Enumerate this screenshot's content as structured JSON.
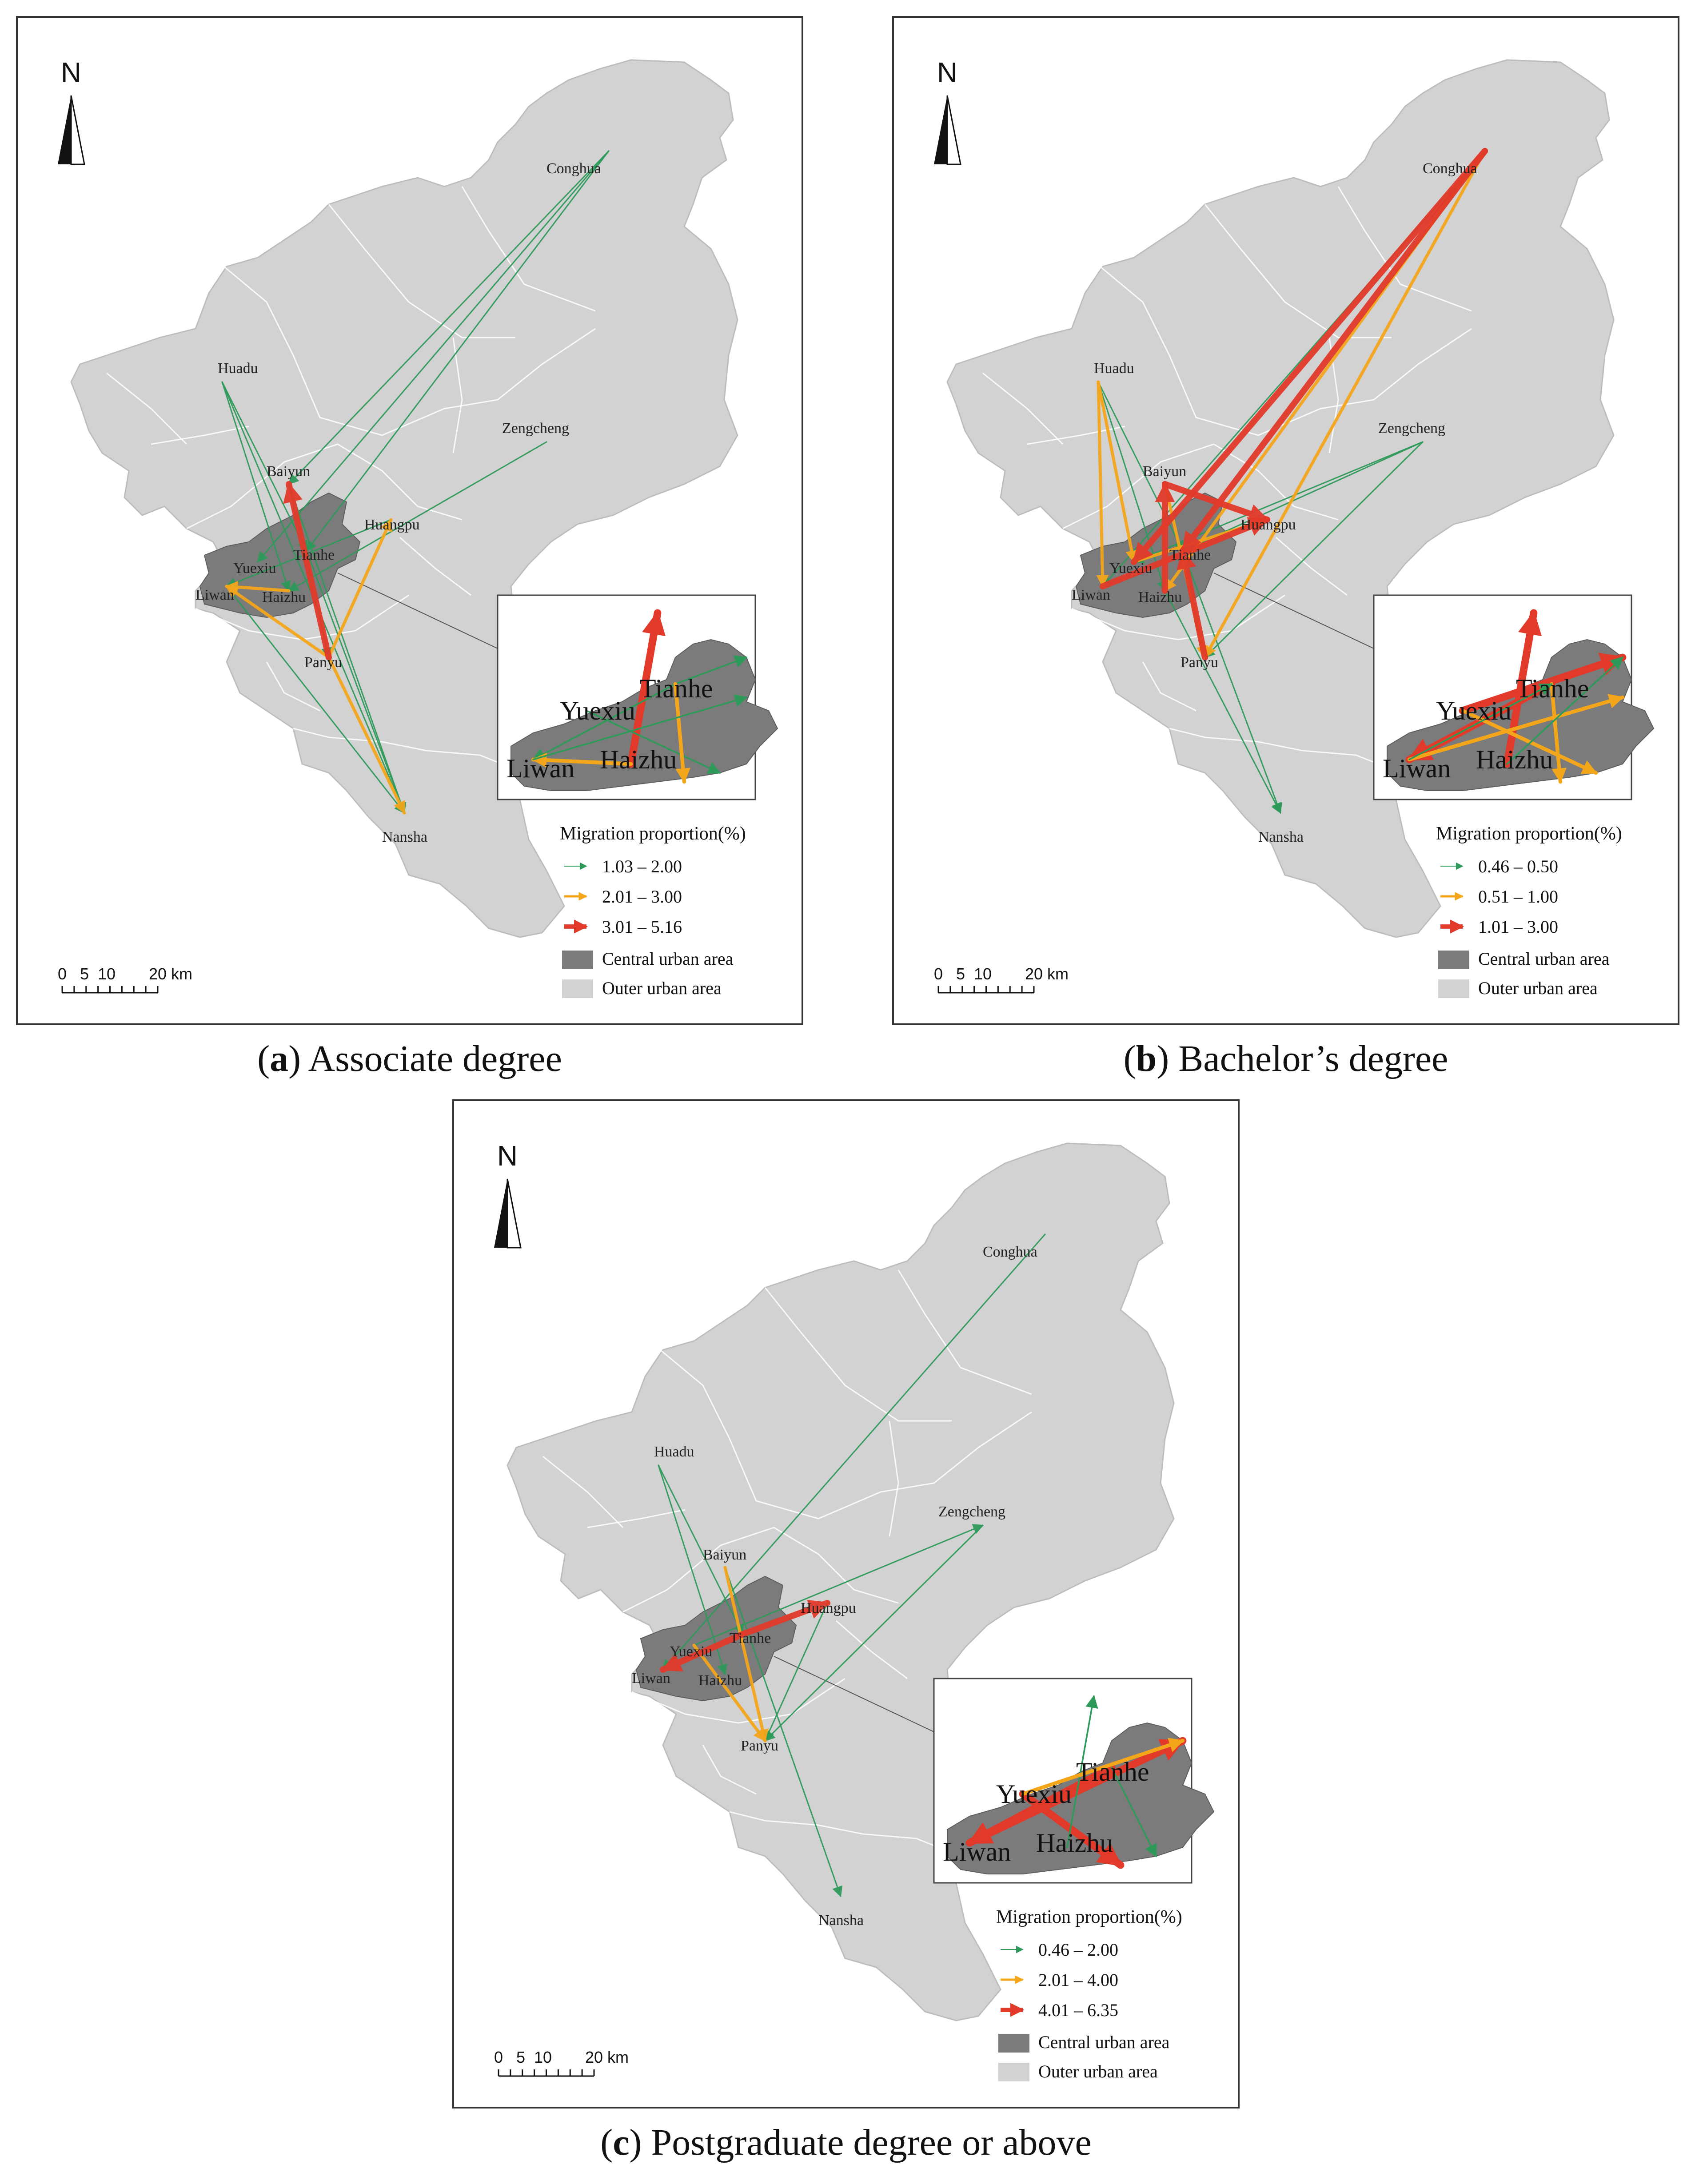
{
  "panels": [
    {
      "id": "a",
      "caption_letter": "a",
      "caption_text": ") Associate degree",
      "caption_prefix": "(",
      "legend": {
        "title": "Migration proportion(%)",
        "classes": [
          {
            "label": "1.03 – 2.00",
            "color": "#2e9a5a"
          },
          {
            "label": "2.01 – 3.00",
            "color": "#f4a61b"
          },
          {
            "label": "3.01 – 5.16",
            "color": "#e23a2a"
          }
        ],
        "central": "Central urban area",
        "outer": "Outer urban area"
      }
    },
    {
      "id": "b",
      "caption_letter": "b",
      "caption_text": ") Bachelor’s degree",
      "caption_prefix": "(",
      "legend": {
        "title": "Migration proportion(%)",
        "classes": [
          {
            "label": "0.46 – 0.50",
            "color": "#2e9a5a"
          },
          {
            "label": "0.51 – 1.00",
            "color": "#f4a61b"
          },
          {
            "label": "1.01 – 3.00",
            "color": "#e23a2a"
          }
        ],
        "central": "Central urban area",
        "outer": "Outer urban area"
      }
    },
    {
      "id": "c",
      "caption_letter": "c",
      "caption_text": ") Postgraduate degree or above",
      "caption_prefix": "(",
      "legend": {
        "title": "Migration proportion(%)",
        "classes": [
          {
            "label": "0.46 – 2.00",
            "color": "#2e9a5a"
          },
          {
            "label": "2.01 – 4.00",
            "color": "#f4a61b"
          },
          {
            "label": "4.01 – 6.35",
            "color": "#e23a2a"
          }
        ],
        "central": "Central urban area",
        "outer": "Outer urban area"
      }
    }
  ],
  "districts": [
    "Conghua",
    "Huadu",
    "Zengcheng",
    "Baiyun",
    "Huangpu",
    "Tianhe",
    "Yuexiu",
    "Liwan",
    "Haizhu",
    "Panyu",
    "Nansha"
  ],
  "inset_districts": [
    "Tianhe",
    "Yuexiu",
    "Liwan",
    "Haizhu"
  ],
  "north_label": "N",
  "scale": {
    "ticks": [
      "0",
      "5",
      "10",
      "20"
    ],
    "unit": "km"
  },
  "colors": {
    "outer_area": "#d2d2d2",
    "central_area": "#7b7b7b",
    "boundary": "#ffffff",
    "low": "#2e9a5a",
    "mid": "#f4a61b",
    "high": "#e23a2a"
  },
  "flows": {
    "a": [
      {
        "from": "Huadu",
        "to": "Nansha",
        "cls": "low"
      },
      {
        "from": "Huadu",
        "to": "Tianhe",
        "cls": "low"
      },
      {
        "from": "Huadu",
        "to": "Haizhu",
        "cls": "low"
      },
      {
        "from": "Conghua",
        "to": "Tianhe",
        "cls": "low"
      },
      {
        "from": "Conghua",
        "to": "Yuexiu",
        "cls": "low"
      },
      {
        "from": "Conghua",
        "to": "Baiyun",
        "cls": "low"
      },
      {
        "from": "Zengcheng",
        "to": "Haizhu",
        "cls": "low"
      },
      {
        "from": "Baiyun",
        "to": "Panyu",
        "cls": "low"
      },
      {
        "from": "Baiyun",
        "to": "Nansha",
        "cls": "low"
      },
      {
        "from": "Tianhe",
        "to": "Nansha",
        "cls": "low"
      },
      {
        "from": "Liwan",
        "to": "Nansha",
        "cls": "low"
      },
      {
        "from": "Huangpu",
        "to": "Liwan",
        "cls": "low"
      },
      {
        "from": "Panyu",
        "to": "Huangpu",
        "cls": "mid"
      },
      {
        "from": "Panyu",
        "to": "Nansha",
        "cls": "mid"
      },
      {
        "from": "Panyu",
        "to": "Liwan",
        "cls": "mid"
      },
      {
        "from": "Haizhu",
        "to": "Liwan",
        "cls": "mid"
      },
      {
        "from": "Panyu",
        "to": "Baiyun",
        "cls": "high"
      }
    ],
    "b": [
      {
        "from": "Huadu",
        "to": "Tianhe",
        "cls": "low"
      },
      {
        "from": "Huadu",
        "to": "Haizhu",
        "cls": "low"
      },
      {
        "from": "Zengcheng",
        "to": "Tianhe",
        "cls": "low"
      },
      {
        "from": "Zengcheng",
        "to": "Yuexiu",
        "cls": "low"
      },
      {
        "from": "Zengcheng",
        "to": "Panyu",
        "cls": "low"
      },
      {
        "from": "Haizhu",
        "to": "Nansha",
        "cls": "low"
      },
      {
        "from": "Tianhe",
        "to": "Nansha",
        "cls": "low"
      },
      {
        "from": "Conghua",
        "to": "Liwan",
        "cls": "low"
      },
      {
        "from": "Huadu",
        "to": "Liwan",
        "cls": "mid"
      },
      {
        "from": "Huadu",
        "to": "Yuexiu",
        "cls": "mid"
      },
      {
        "from": "Conghua",
        "to": "Panyu",
        "cls": "mid"
      },
      {
        "from": "Conghua",
        "to": "Haizhu",
        "cls": "mid"
      },
      {
        "from": "Baiyun",
        "to": "Panyu",
        "cls": "mid"
      },
      {
        "from": "Yuexiu",
        "to": "Huangpu",
        "cls": "mid"
      },
      {
        "from": "Conghua",
        "to": "Tianhe",
        "cls": "high"
      },
      {
        "from": "Conghua",
        "to": "Yuexiu",
        "cls": "high"
      },
      {
        "from": "Baiyun",
        "to": "Huangpu",
        "cls": "high"
      },
      {
        "from": "Haizhu",
        "to": "Baiyun",
        "cls": "high"
      },
      {
        "from": "Panyu",
        "to": "Tianhe",
        "cls": "high"
      },
      {
        "from": "Liwan",
        "to": "Huangpu",
        "cls": "high"
      }
    ],
    "c": [
      {
        "from": "Huadu",
        "to": "Tianhe",
        "cls": "low"
      },
      {
        "from": "Huadu",
        "to": "Haizhu",
        "cls": "low"
      },
      {
        "from": "Conghua",
        "to": "Liwan",
        "cls": "low"
      },
      {
        "from": "Yuexiu",
        "to": "Zengcheng",
        "cls": "low"
      },
      {
        "from": "Zengcheng",
        "to": "Panyu",
        "cls": "low"
      },
      {
        "from": "Baiyun",
        "to": "Nansha",
        "cls": "low"
      },
      {
        "from": "Huangpu",
        "to": "Panyu",
        "cls": "low"
      },
      {
        "from": "Baiyun",
        "to": "Panyu",
        "cls": "mid"
      },
      {
        "from": "Yuexiu",
        "to": "Panyu",
        "cls": "mid"
      },
      {
        "from": "Tianhe",
        "to": "Huangpu",
        "cls": "high"
      },
      {
        "from": "Tianhe",
        "to": "Liwan",
        "cls": "high"
      }
    ]
  }
}
